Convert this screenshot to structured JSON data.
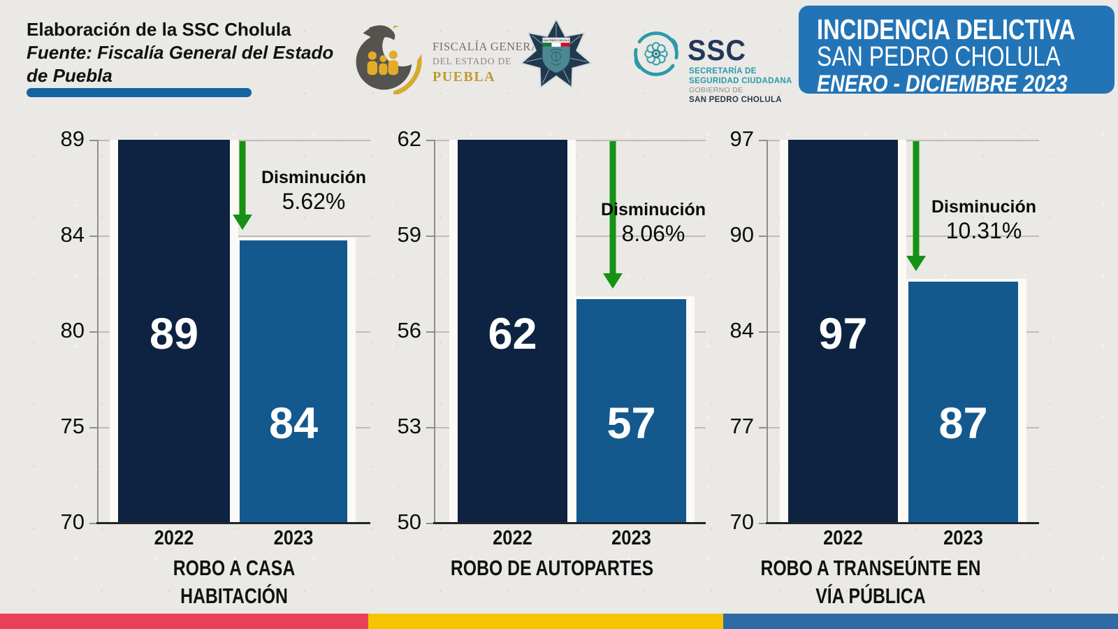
{
  "page": {
    "background": "#eae9e6"
  },
  "header": {
    "credit": {
      "line1": "Elaboración de la SSC Cholula",
      "line2": "Fuente: Fiscalía General del Estado",
      "line3": "de Puebla",
      "underline_color": "#1463a3"
    },
    "logos": {
      "fiscalia": {
        "line1": "FISCALÍA GENERAL",
        "line2": "DEL ESTADO DE",
        "line3": "PUEBLA",
        "eagle_color": "#55534e",
        "gold_color": "#d8a92f"
      },
      "badge": {
        "band_text": "SAN PEDRO CHOLULA",
        "star_color": "#20394f",
        "shield_color": "#4b8894"
      },
      "ssc": {
        "acronym": "SSC",
        "line1": "SECRETARÍA DE",
        "line2": "SEGURIDAD CIUDADANA",
        "line3": "GOBIERNO DE",
        "line4": "SAN PEDRO CHOLULA",
        "teal_color": "#2b9aa8"
      }
    },
    "title_box": {
      "line1": "INCIDENCIA DELICTIVA",
      "line2": "SAN PEDRO CHOLULA",
      "line3": "ENERO - DICIEMBRE 2023",
      "background": "#2274b6",
      "text_color": "#ffffff"
    }
  },
  "chart_styles": {
    "bar_color_2022": "#0e2342",
    "bar_color_2023": "#14598e",
    "bar_border_color": "#fbfaf7",
    "arrow_color": "#169114",
    "value_label_color": "#ffffff",
    "gridline_color": "#bfbdba",
    "axis_color": "#8f8e8b",
    "baseline_color": "#242424"
  },
  "chart_data": [
    {
      "type": "bar",
      "title": "ROBO A CASA HABITACIÓN",
      "title_lines": [
        "ROBO A CASA",
        "HABITACIÓN"
      ],
      "categories": [
        "2022",
        "2023"
      ],
      "values": [
        89,
        84
      ],
      "value_labels": [
        "89",
        "84"
      ],
      "ylim": [
        70,
        89
      ],
      "yticks_top_to_bottom": [
        "89",
        "84",
        "80",
        "75",
        "70"
      ],
      "grid": true,
      "annotation": {
        "label": "Disminución",
        "percent": "5.62%"
      }
    },
    {
      "type": "bar",
      "title": "ROBO DE AUTOPARTES",
      "title_lines": [
        "ROBO DE AUTOPARTES"
      ],
      "categories": [
        "2022",
        "2023"
      ],
      "values": [
        62,
        57
      ],
      "value_labels": [
        "62",
        "57"
      ],
      "ylim": [
        50,
        62
      ],
      "yticks_top_to_bottom": [
        "62",
        "59",
        "56",
        "53",
        "50"
      ],
      "grid": true,
      "annotation": {
        "label": "Disminución",
        "percent": "8.06%"
      }
    },
    {
      "type": "bar",
      "title": "ROBO A TRANSEÚNTE EN VÍA PÚBLICA",
      "title_lines": [
        "ROBO A TRANSEÚNTE EN",
        "VÍA PÚBLICA"
      ],
      "categories": [
        "2022",
        "2023"
      ],
      "values": [
        97,
        87
      ],
      "value_labels": [
        "97",
        "87"
      ],
      "ylim": [
        70,
        97
      ],
      "yticks_top_to_bottom": [
        "97",
        "90",
        "84",
        "77",
        "70"
      ],
      "grid": true,
      "annotation": {
        "label": "Disminución",
        "percent": "10.31%"
      }
    }
  ],
  "footer": {
    "stripe_colors": [
      "#e84158",
      "#f6c500",
      "#2e6ba5"
    ]
  }
}
